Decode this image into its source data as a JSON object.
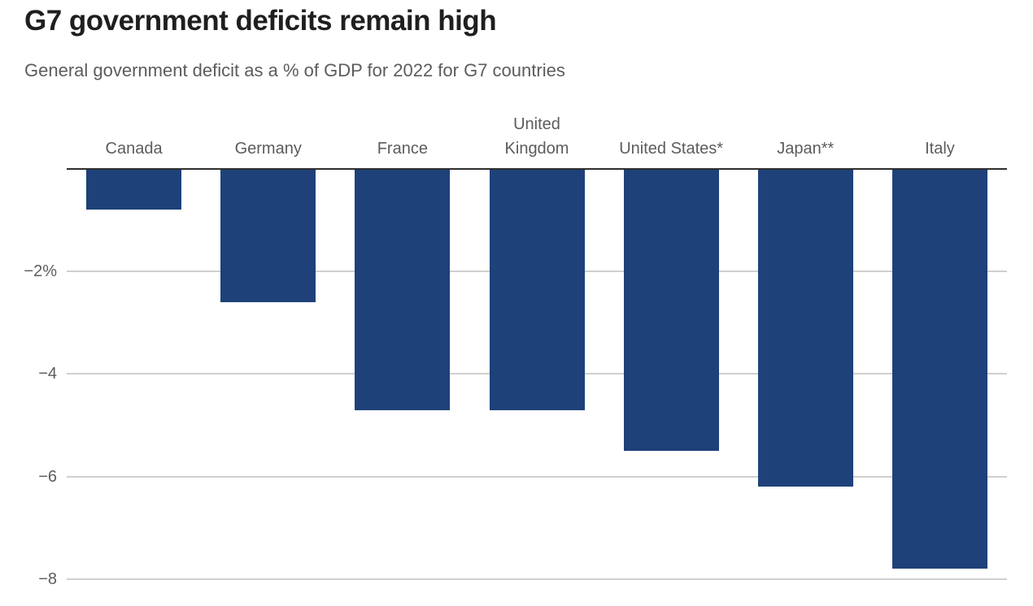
{
  "chart_data": {
    "type": "bar",
    "title": "G7 government deficits remain high",
    "subtitle": "General government deficit as a % of GDP for 2022 for G7 countries",
    "categories": [
      "Canada",
      "Germany",
      "France",
      "United Kingdom",
      "United States*",
      "Japan**",
      "Italy"
    ],
    "category_display": [
      "Canada",
      "Germany",
      "France",
      "United\nKingdom",
      "United States*",
      "Japan**",
      "Italy"
    ],
    "values": [
      -0.8,
      -2.6,
      -4.7,
      -4.7,
      -5.5,
      -6.2,
      -7.8
    ],
    "unit": "% of GDP",
    "xlabel": "",
    "ylabel": "",
    "ylim": [
      -8.5,
      0
    ],
    "yticks": [
      {
        "value": -2,
        "label": "−2%"
      },
      {
        "value": -4,
        "label": "−4"
      },
      {
        "value": -6,
        "label": "−6"
      },
      {
        "value": -8,
        "label": "−8"
      }
    ],
    "grid": true,
    "legend": false,
    "orientation": "vertical",
    "bar_color": "#1e4179"
  },
  "colors": {
    "bar": "#1e4179",
    "zero_axis": "#2e2e2e",
    "gridline": "#cfcfcf",
    "title_text": "#1f1f1f",
    "muted_text": "#5c5c5c"
  }
}
